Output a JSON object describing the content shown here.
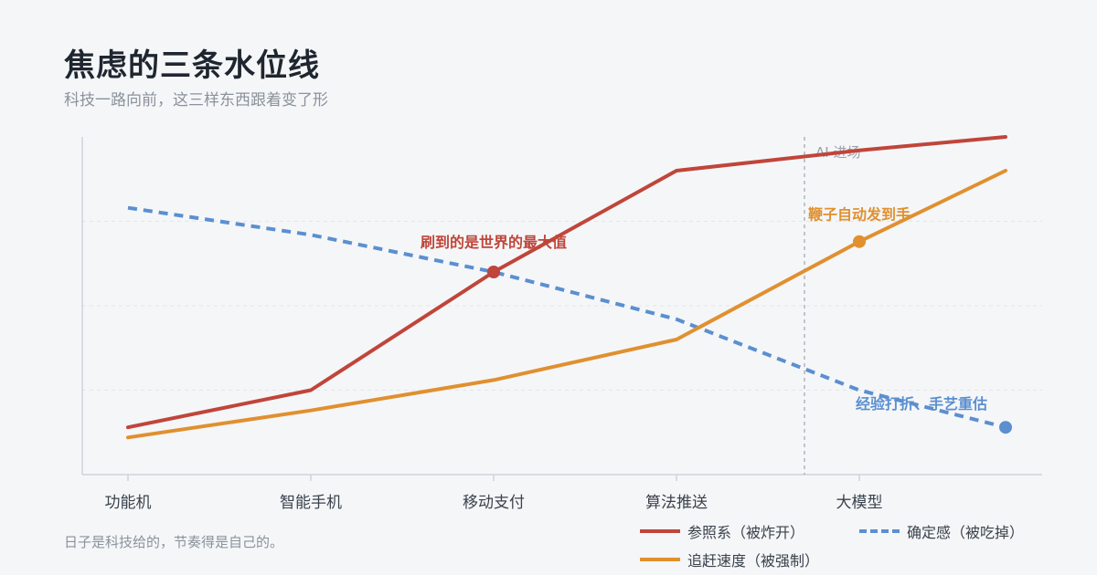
{
  "header": {
    "title": "焦虑的三条水位线",
    "subtitle": "科技一路向前，这三样东西跟着变了形"
  },
  "footer": {
    "note": "日子是科技给的，节奏得是自己的。"
  },
  "colors": {
    "background": "#f5f6f8",
    "reference": "#c0453a",
    "catchup": "#e0902f",
    "certainty": "#5b8fd0",
    "grid": "#e3e6ea",
    "axis": "#cfd4da",
    "marker_line": "#a6abb2"
  },
  "chart_data": {
    "type": "line",
    "title": "焦虑的三条水位线",
    "subtitle": "科技一路向前，这三样东西跟着变了形",
    "categories": [
      "功能机",
      "智能手机",
      "移动支付",
      "算法推送",
      "大模型"
    ],
    "x": [
      0,
      1,
      2,
      3,
      4,
      4.8
    ],
    "xlim": [
      -0.25,
      5
    ],
    "ylim": [
      0,
      100
    ],
    "grid": {
      "horizontal": true,
      "vertical": false
    },
    "legend_position": "bottom-right",
    "series": [
      {
        "key": "reference",
        "name": "参照系（被炸开）",
        "style": "solid",
        "values": [
          14,
          25,
          60,
          90,
          96,
          100
        ]
      },
      {
        "key": "catchup",
        "name": "追赶速度（被强制）",
        "style": "solid",
        "values": [
          11,
          19,
          28,
          40,
          69,
          90
        ]
      },
      {
        "key": "certainty",
        "name": "确定感（被吃掉）",
        "style": "dashed",
        "values": [
          79,
          71,
          60,
          46,
          25,
          14
        ]
      }
    ],
    "vline": {
      "x": 3.7,
      "label": "AI 进场"
    },
    "annotations": [
      {
        "series": "reference",
        "index": 2,
        "text": "刷到的是世界的最大值"
      },
      {
        "series": "catchup",
        "index": 4,
        "text": "鞭子自动发到手"
      },
      {
        "series": "certainty",
        "index": 5,
        "text": "经验打折、手艺重估"
      }
    ]
  }
}
